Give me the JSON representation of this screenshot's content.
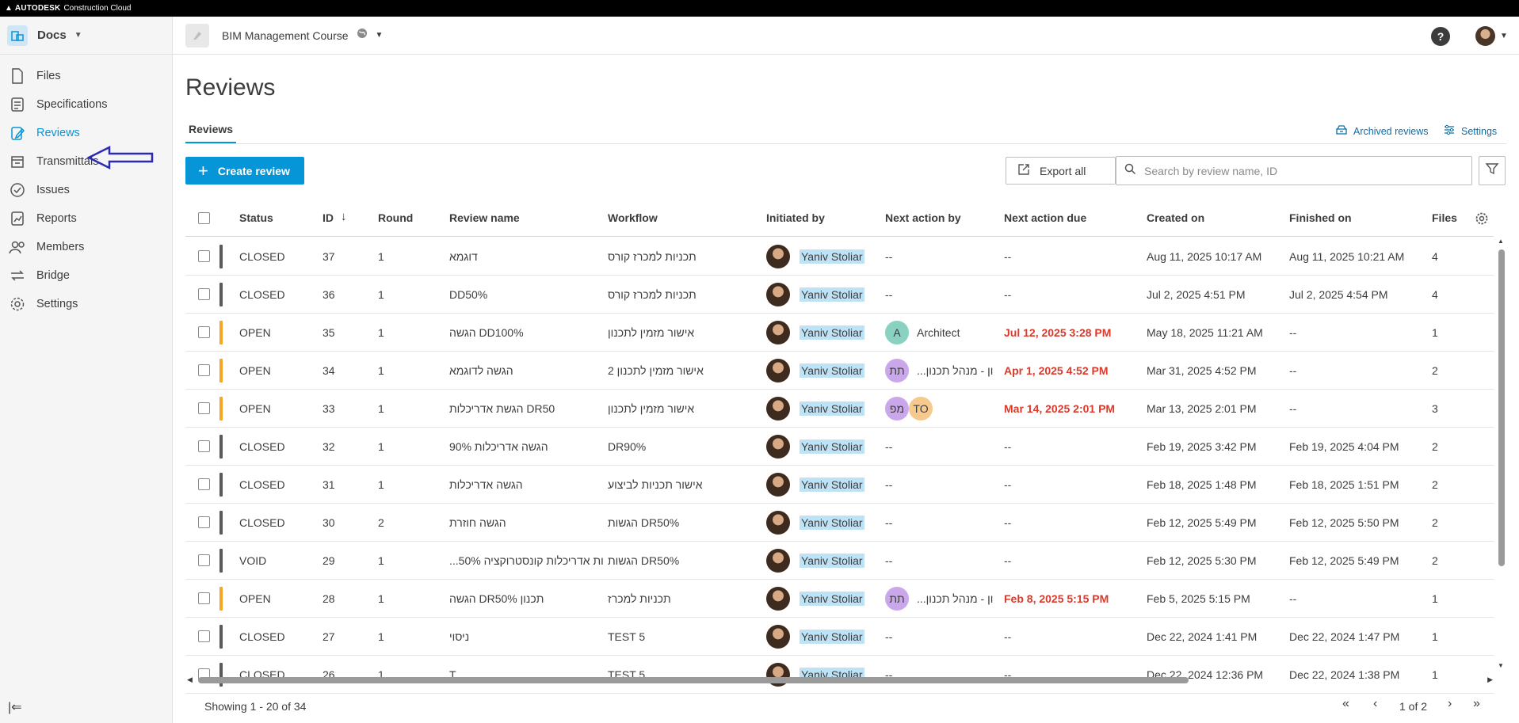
{
  "topbar": {
    "brand": "AUTODESK",
    "product": "Construction Cloud"
  },
  "sidebar": {
    "module": "Docs",
    "items": [
      {
        "label": "Files",
        "icon": "file-icon"
      },
      {
        "label": "Specifications",
        "icon": "specifications-icon"
      },
      {
        "label": "Reviews",
        "icon": "reviews-icon",
        "active": true
      },
      {
        "label": "Transmittals",
        "icon": "transmittals-icon"
      },
      {
        "label": "Issues",
        "icon": "issues-icon"
      },
      {
        "label": "Reports",
        "icon": "reports-icon"
      },
      {
        "label": "Members",
        "icon": "members-icon"
      },
      {
        "label": "Bridge",
        "icon": "bridge-icon"
      },
      {
        "label": "Settings",
        "icon": "settings-icon"
      }
    ]
  },
  "project": {
    "name": "BIM Management Course"
  },
  "page": {
    "title": "Reviews",
    "tab": "Reviews",
    "archived_label": "Archived reviews",
    "settings_label": "Settings",
    "create_label": "Create review",
    "export_label": "Export all",
    "search_placeholder": "Search by review name, ID"
  },
  "colors": {
    "accent": "#0696d7",
    "closed": "#5a5a5a",
    "open": "#f5a623",
    "overdue": "#d93a2b",
    "highlight": "#bfe3f6"
  },
  "table": {
    "headers": {
      "status": "Status",
      "id": "ID",
      "round": "Round",
      "name": "Review name",
      "workflow": "Workflow",
      "initiated": "Initiated by",
      "next_action": "Next action by",
      "due": "Next action due",
      "created": "Created on",
      "finished": "Finished on",
      "files": "Files"
    },
    "rows": [
      {
        "status": "CLOSED",
        "id": "37",
        "round": "1",
        "name": "דוגמא",
        "workflow": "תכניות למכרז קורס",
        "initiated": "Yaniv Stoliar",
        "next_action": "--",
        "due": "--",
        "created": "Aug 11, 2025 10:17 AM",
        "finished": "Aug 11, 2025 10:21 AM",
        "files": "4"
      },
      {
        "status": "CLOSED",
        "id": "36",
        "round": "1",
        "name": "DD50%",
        "workflow": "תכניות למכרז קורס",
        "initiated": "Yaniv Stoliar",
        "next_action": "--",
        "due": "--",
        "created": "Jul 2, 2025 4:51 PM",
        "finished": "Jul 2, 2025 4:54 PM",
        "files": "4"
      },
      {
        "status": "OPEN",
        "id": "35",
        "round": "1",
        "name": "הגשה DD100%",
        "workflow": "אישור מזמין לתכנון",
        "initiated": "Yaniv Stoliar",
        "next_action_avatars": [
          "A"
        ],
        "next_action": "Architect",
        "due": "Jul 12, 2025 3:28 PM",
        "created": "May 18, 2025 11:21 AM",
        "finished": "--",
        "files": "1"
      },
      {
        "status": "OPEN",
        "id": "34",
        "round": "1",
        "name": "הגשה לדוגמא",
        "workflow": "אישור מזמין לתכנון 2",
        "initiated": "Yaniv Stoliar",
        "next_action_avatars": [
          "תת"
        ],
        "next_action": "ון - מנהל תכנון...",
        "due": "Apr 1, 2025 4:52 PM",
        "created": "Mar 31, 2025 4:52 PM",
        "finished": "--",
        "files": "2"
      },
      {
        "status": "OPEN",
        "id": "33",
        "round": "1",
        "name": "הגשת אדריכלות DR50",
        "workflow": "אישור מזמין לתכנון",
        "initiated": "Yaniv Stoliar",
        "next_action_avatars": [
          "מפ",
          "TO"
        ],
        "next_action": "",
        "due": "Mar 14, 2025 2:01 PM",
        "created": "Mar 13, 2025 2:01 PM",
        "finished": "--",
        "files": "3"
      },
      {
        "status": "CLOSED",
        "id": "32",
        "round": "1",
        "name": "הגשה אדריכלות 90%",
        "workflow": "DR90%",
        "initiated": "Yaniv Stoliar",
        "next_action": "--",
        "due": "--",
        "created": "Feb 19, 2025 3:42 PM",
        "finished": "Feb 19, 2025 4:04 PM",
        "files": "2"
      },
      {
        "status": "CLOSED",
        "id": "31",
        "round": "1",
        "name": "הגשה אדריכלות",
        "workflow": "אישור תכניות לביצוע",
        "initiated": "Yaniv Stoliar",
        "next_action": "--",
        "due": "--",
        "created": "Feb 18, 2025 1:48 PM",
        "finished": "Feb 18, 2025 1:51 PM",
        "files": "2"
      },
      {
        "status": "CLOSED",
        "id": "30",
        "round": "2",
        "name": "הגשה חוזרת",
        "workflow": "הגשות DR50%",
        "initiated": "Yaniv Stoliar",
        "next_action": "--",
        "due": "--",
        "created": "Feb 12, 2025 5:49 PM",
        "finished": "Feb 12, 2025 5:50 PM",
        "files": "2"
      },
      {
        "status": "VOID",
        "id": "29",
        "round": "1",
        "name": "...ות אדריכלות קונסטרוקציה 50%",
        "workflow": "הגשות DR50%",
        "initiated": "Yaniv Stoliar",
        "next_action": "--",
        "due": "--",
        "created": "Feb 12, 2025 5:30 PM",
        "finished": "Feb 12, 2025 5:49 PM",
        "files": "2"
      },
      {
        "status": "OPEN",
        "id": "28",
        "round": "1",
        "name": "הגשה DR50% תכנון",
        "workflow": "תכניות למכרז",
        "initiated": "Yaniv Stoliar",
        "next_action_avatars": [
          "תת"
        ],
        "next_action": "ון - מנהל תכנון...",
        "due": "Feb 8, 2025 5:15 PM",
        "created": "Feb 5, 2025 5:15 PM",
        "finished": "--",
        "files": "1"
      },
      {
        "status": "CLOSED",
        "id": "27",
        "round": "1",
        "name": "ניסוי",
        "workflow": "TEST 5",
        "initiated": "Yaniv Stoliar",
        "next_action": "--",
        "due": "--",
        "created": "Dec 22, 2024 1:41 PM",
        "finished": "Dec 22, 2024 1:47 PM",
        "files": "1"
      },
      {
        "status": "CLOSED",
        "id": "26",
        "round": "1",
        "name": "T",
        "workflow": "TEST 5",
        "initiated": "Yaniv Stoliar",
        "next_action": "--",
        "due": "--",
        "created": "Dec 22, 2024 12:36 PM",
        "finished": "Dec 22, 2024 1:38 PM",
        "files": "1"
      }
    ]
  },
  "footer": {
    "showing": "Showing 1 - 20 of 34",
    "page_indicator": "1 of 2"
  }
}
